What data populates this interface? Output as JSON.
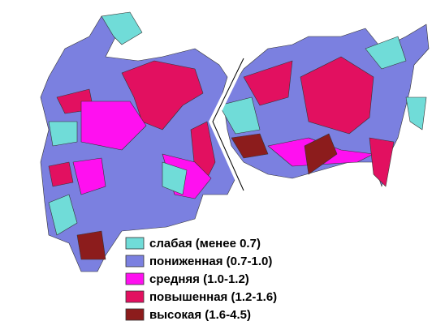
{
  "legend": {
    "items": [
      {
        "label": "слабая (менее 0.7)",
        "color": "#70dcd8"
      },
      {
        "label": "пониженная (0.7-1.0)",
        "color": "#7b80e0"
      },
      {
        "label": "средняя (1.0-1.2)",
        "color": "#ff10f0"
      },
      {
        "label": "повышенная (1.2-1.6)",
        "color": "#e21060"
      },
      {
        "label": "высокая (1.6-4.5)",
        "color": "#8c1c1c"
      }
    ]
  }
}
